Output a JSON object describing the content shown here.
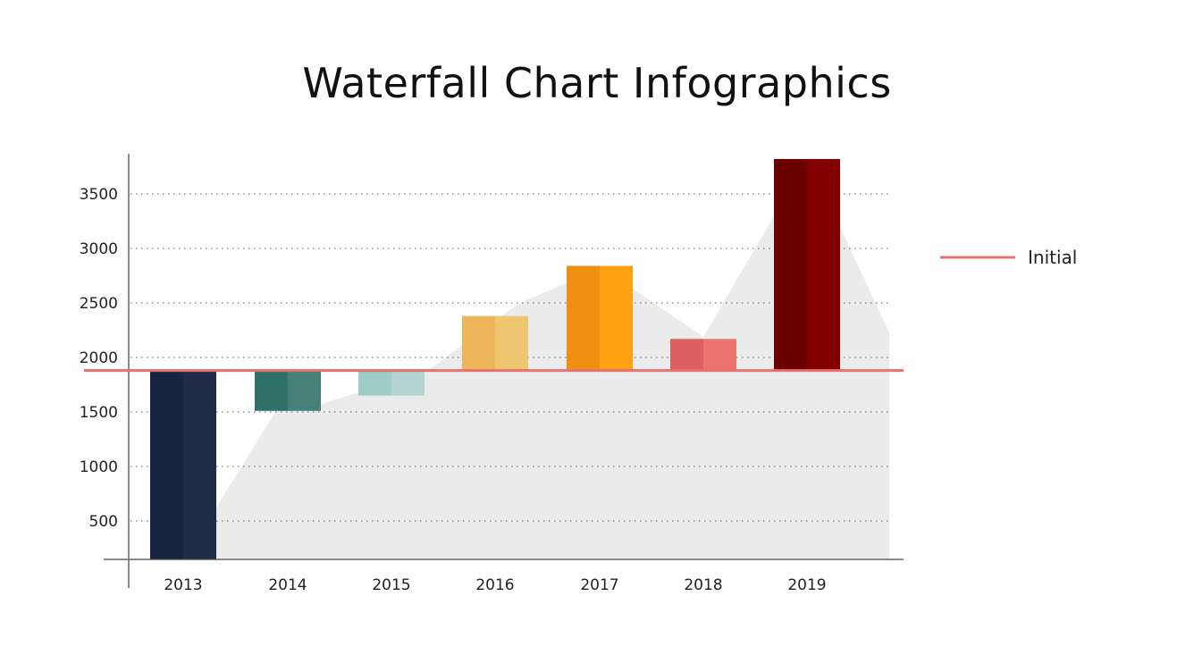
{
  "chart_data": {
    "type": "waterfall",
    "title": "Waterfall Chart Infographics",
    "xlabel": "",
    "ylabel": "",
    "ylim": [
      150,
      3870
    ],
    "yticks": [
      500,
      1000,
      1500,
      2000,
      2500,
      3000,
      3500
    ],
    "grid": "horizontal dotted",
    "legend": {
      "position": "right",
      "entries": [
        {
          "name": "Initial",
          "color": "#e8706e"
        }
      ]
    },
    "initial": 1880,
    "categories": [
      "2013",
      "2014",
      "2015",
      "2016",
      "2017",
      "2018",
      "2019"
    ],
    "bars": [
      {
        "start": 1880,
        "end": 150,
        "colors": [
          "#16243f",
          "#202c47"
        ]
      },
      {
        "start": 1880,
        "end": 1510,
        "colors": [
          "#2f7168",
          "#477f79"
        ]
      },
      {
        "start": 1880,
        "end": 1650,
        "colors": [
          "#9ccbc8",
          "#b4d4d4"
        ]
      },
      {
        "start": 1880,
        "end": 2380,
        "colors": [
          "#ecb55a",
          "#f0c571"
        ]
      },
      {
        "start": 1880,
        "end": 2840,
        "colors": [
          "#ee8f12",
          "#fca112"
        ]
      },
      {
        "start": 1880,
        "end": 2170,
        "colors": [
          "#de5f5f",
          "#ec726e"
        ]
      },
      {
        "start": 1880,
        "end": 3820,
        "colors": [
          "#690000",
          "#820000"
        ]
      }
    ],
    "background_area_color": "#ebebeb"
  }
}
